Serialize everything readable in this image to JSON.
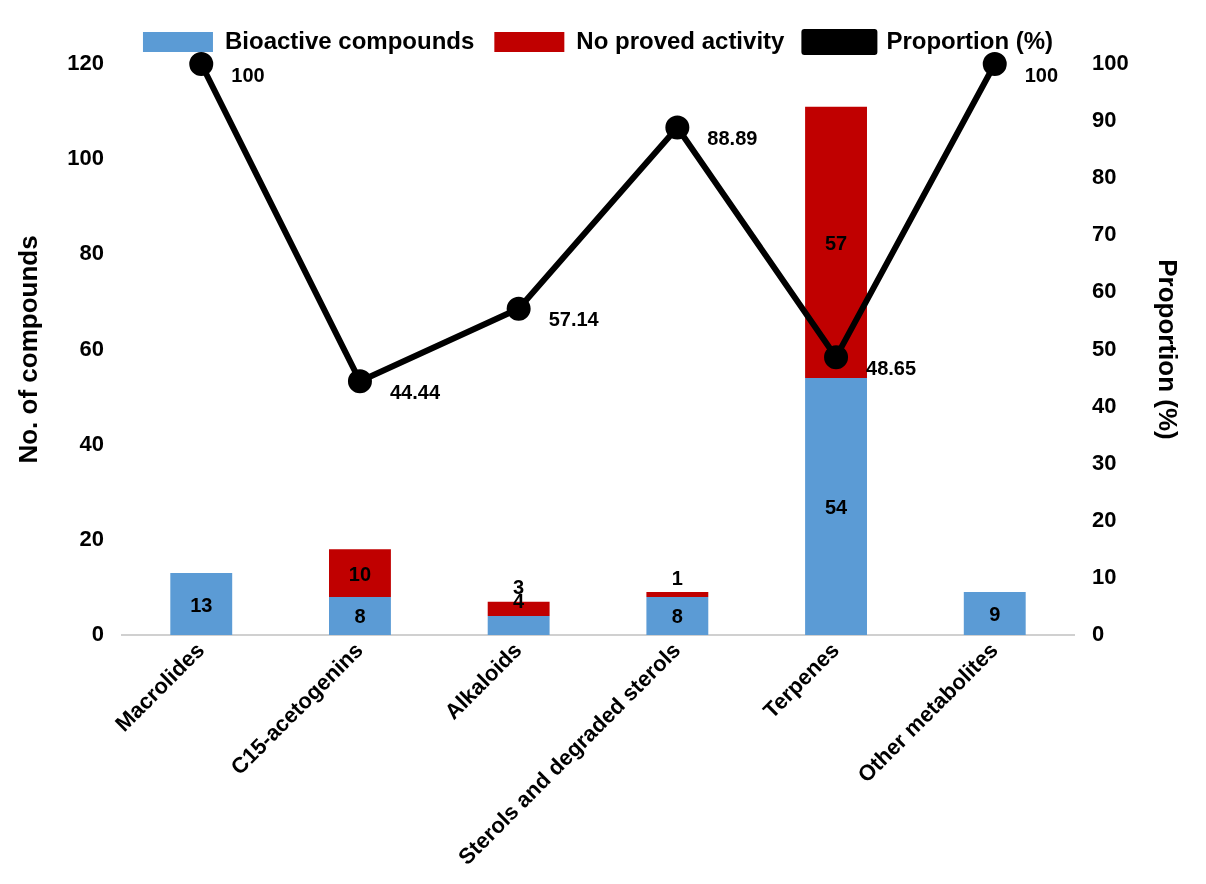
{
  "chart_data": {
    "type": "bar",
    "stacked": true,
    "ylabel": "No. of compounds",
    "y2label": "Proportion (%)",
    "categories": [
      "Macrolides",
      "C15-acetogenins",
      "Alkaloids",
      "Sterols and degraded sterols",
      "Terpenes",
      "Other metabolites"
    ],
    "series": [
      {
        "name": "Bioactive compounds",
        "color": "#5b9bd5",
        "values": [
          13,
          8,
          4,
          8,
          54,
          9
        ]
      },
      {
        "name": "No proved activity",
        "color": "#c00000",
        "values": [
          null,
          10,
          3,
          1,
          57,
          null
        ]
      },
      {
        "name": "Proportion (%)",
        "type": "line",
        "axis": "y2",
        "color": "#000000",
        "values": [
          100,
          44.44,
          57.14,
          88.89,
          48.65,
          100
        ]
      }
    ],
    "ylim": [
      0,
      120
    ],
    "yticks": [
      0,
      20,
      40,
      60,
      80,
      100,
      120
    ],
    "y2lim": [
      0,
      100
    ],
    "y2ticks": [
      0,
      10,
      20,
      30,
      40,
      50,
      60,
      70,
      80,
      90,
      100
    ],
    "grid": false,
    "legend": "top",
    "marker": "circle",
    "line_style": "solid",
    "data_labels": true
  }
}
